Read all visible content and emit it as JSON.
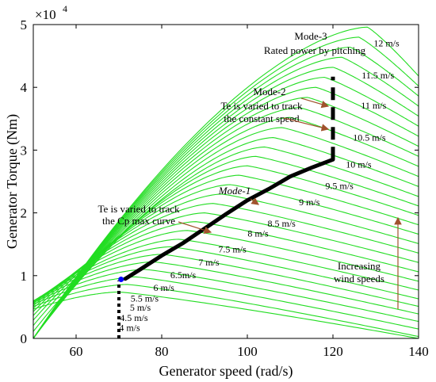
{
  "chart_data": {
    "type": "line",
    "title": "",
    "xlabel": "Generator speed (rad/s)",
    "ylabel": "Generator Torque (Nm)",
    "y_multiplier_label": "×10",
    "y_multiplier_exp": "4",
    "xlim": [
      50,
      140
    ],
    "ylim": [
      0,
      5
    ],
    "x_ticks": [
      60,
      80,
      100,
      120,
      140
    ],
    "y_ticks": [
      0,
      1,
      2,
      3,
      4,
      5
    ],
    "grid": false,
    "colors": {
      "wind_curves": "#22dd22",
      "operating_curve": "#000000",
      "annotation_arrow": "#a0522d",
      "start_point": "#0000ff"
    },
    "wind_speed_labels": [
      {
        "text": "12  m/s",
        "x": 132.5,
        "y": 4.65
      },
      {
        "text": "11.5 m/s",
        "x": 130.5,
        "y": 4.14
      },
      {
        "text": "11 m/s",
        "x": 129.5,
        "y": 3.66
      },
      {
        "text": "10.5 m/s",
        "x": 128.5,
        "y": 3.15
      },
      {
        "text": "10 m/s",
        "x": 126.0,
        "y": 2.72
      },
      {
        "text": "9.5 m/s",
        "x": 121.5,
        "y": 2.38
      },
      {
        "text": "9 m/s",
        "x": 114.5,
        "y": 2.12
      },
      {
        "text": "8.5 m/s",
        "x": 108.0,
        "y": 1.78
      },
      {
        "text": "8 m/s",
        "x": 102.5,
        "y": 1.62
      },
      {
        "text": "7.5 m/s",
        "x": 96.5,
        "y": 1.37
      },
      {
        "text": "7 m/s",
        "x": 91.0,
        "y": 1.16
      },
      {
        "text": "6.5m/s",
        "x": 85.0,
        "y": 0.96
      },
      {
        "text": "6 m/s",
        "x": 80.5,
        "y": 0.76
      },
      {
        "text": "5.5 m/s",
        "x": 76.0,
        "y": 0.59
      },
      {
        "text": "5 m/s",
        "x": 75.0,
        "y": 0.44
      },
      {
        "text": "4.5 m/s",
        "x": 73.5,
        "y": 0.28
      },
      {
        "text": "4 m/s",
        "x": 72.5,
        "y": 0.12
      }
    ],
    "wind_curves": [
      {
        "peak_x": 70,
        "peak_y": 0.74,
        "end_y": 0.0
      },
      {
        "peak_x": 72,
        "peak_y": 0.86,
        "end_y": 0.03
      },
      {
        "peak_x": 74,
        "peak_y": 0.98,
        "end_y": 0.15
      },
      {
        "peak_x": 76,
        "peak_y": 1.1,
        "end_y": 0.27
      },
      {
        "peak_x": 78,
        "peak_y": 1.22,
        "end_y": 0.39
      },
      {
        "peak_x": 80,
        "peak_y": 1.34,
        "end_y": 0.51
      },
      {
        "peak_x": 82,
        "peak_y": 1.46,
        "end_y": 0.63
      },
      {
        "peak_x": 84,
        "peak_y": 1.58,
        "end_y": 0.77
      },
      {
        "peak_x": 86,
        "peak_y": 1.72,
        "end_y": 0.91
      },
      {
        "peak_x": 88,
        "peak_y": 1.86,
        "end_y": 1.06
      },
      {
        "peak_x": 90,
        "peak_y": 2.0,
        "end_y": 1.21
      },
      {
        "peak_x": 92,
        "peak_y": 2.15,
        "end_y": 1.36
      },
      {
        "peak_x": 94,
        "peak_y": 2.3,
        "end_y": 1.51
      },
      {
        "peak_x": 96,
        "peak_y": 2.45,
        "end_y": 1.66
      },
      {
        "peak_x": 98,
        "peak_y": 2.6,
        "end_y": 1.81
      },
      {
        "peak_x": 100,
        "peak_y": 2.75,
        "end_y": 1.96
      },
      {
        "peak_x": 102,
        "peak_y": 2.9,
        "end_y": 2.11
      },
      {
        "peak_x": 104,
        "peak_y": 3.05,
        "end_y": 2.26
      },
      {
        "peak_x": 106,
        "peak_y": 3.2,
        "end_y": 2.42
      },
      {
        "peak_x": 108,
        "peak_y": 3.36,
        "end_y": 2.58
      },
      {
        "peak_x": 110,
        "peak_y": 3.52,
        "end_y": 2.74
      },
      {
        "peak_x": 112,
        "peak_y": 3.68,
        "end_y": 2.9
      },
      {
        "peak_x": 114,
        "peak_y": 3.84,
        "end_y": 3.06
      },
      {
        "peak_x": 116,
        "peak_y": 4.0,
        "end_y": 3.22
      },
      {
        "peak_x": 118,
        "peak_y": 4.16,
        "end_y": 3.38
      },
      {
        "peak_x": 120,
        "peak_y": 4.32,
        "end_y": 3.54
      },
      {
        "peak_x": 122,
        "peak_y": 4.48,
        "end_y": 3.7
      },
      {
        "peak_x": 124,
        "peak_y": 4.64,
        "end_y": 3.86
      },
      {
        "peak_x": 126,
        "peak_y": 4.8,
        "end_y": 4.02
      },
      {
        "peak_x": 128,
        "peak_y": 4.96,
        "end_y": 4.18
      }
    ],
    "operating_curve": {
      "mode1": [
        {
          "x": 71.5,
          "y": 0.95
        },
        {
          "x": 75,
          "y": 1.1
        },
        {
          "x": 80,
          "y": 1.32
        },
        {
          "x": 85,
          "y": 1.52
        },
        {
          "x": 90,
          "y": 1.75
        },
        {
          "x": 95,
          "y": 1.98
        },
        {
          "x": 100,
          "y": 2.2
        },
        {
          "x": 105,
          "y": 2.38
        },
        {
          "x": 110,
          "y": 2.58
        },
        {
          "x": 115,
          "y": 2.72
        },
        {
          "x": 120,
          "y": 2.85
        }
      ],
      "mode2": {
        "x": 120,
        "y_start": 2.85,
        "y_end": 4.17
      },
      "startup": {
        "x": 70,
        "y_start": 0.0,
        "y_end": 0.92
      },
      "start_point": {
        "x": 70.5,
        "y": 0.94
      }
    },
    "annotations": {
      "mode3_title": "Mode-3",
      "mode3_text": "Rated power by pitching",
      "mode2_title": "Mode-2",
      "mode2_line1": "Te is varied to track",
      "mode2_line2": "the constant speed",
      "mode1_title": "Mode-1",
      "mode1_line1": "Te is varied to track",
      "mode1_line2": "the Cp max curve",
      "increasing_line1": "Increasing",
      "increasing_line2": "wind speeds"
    }
  }
}
